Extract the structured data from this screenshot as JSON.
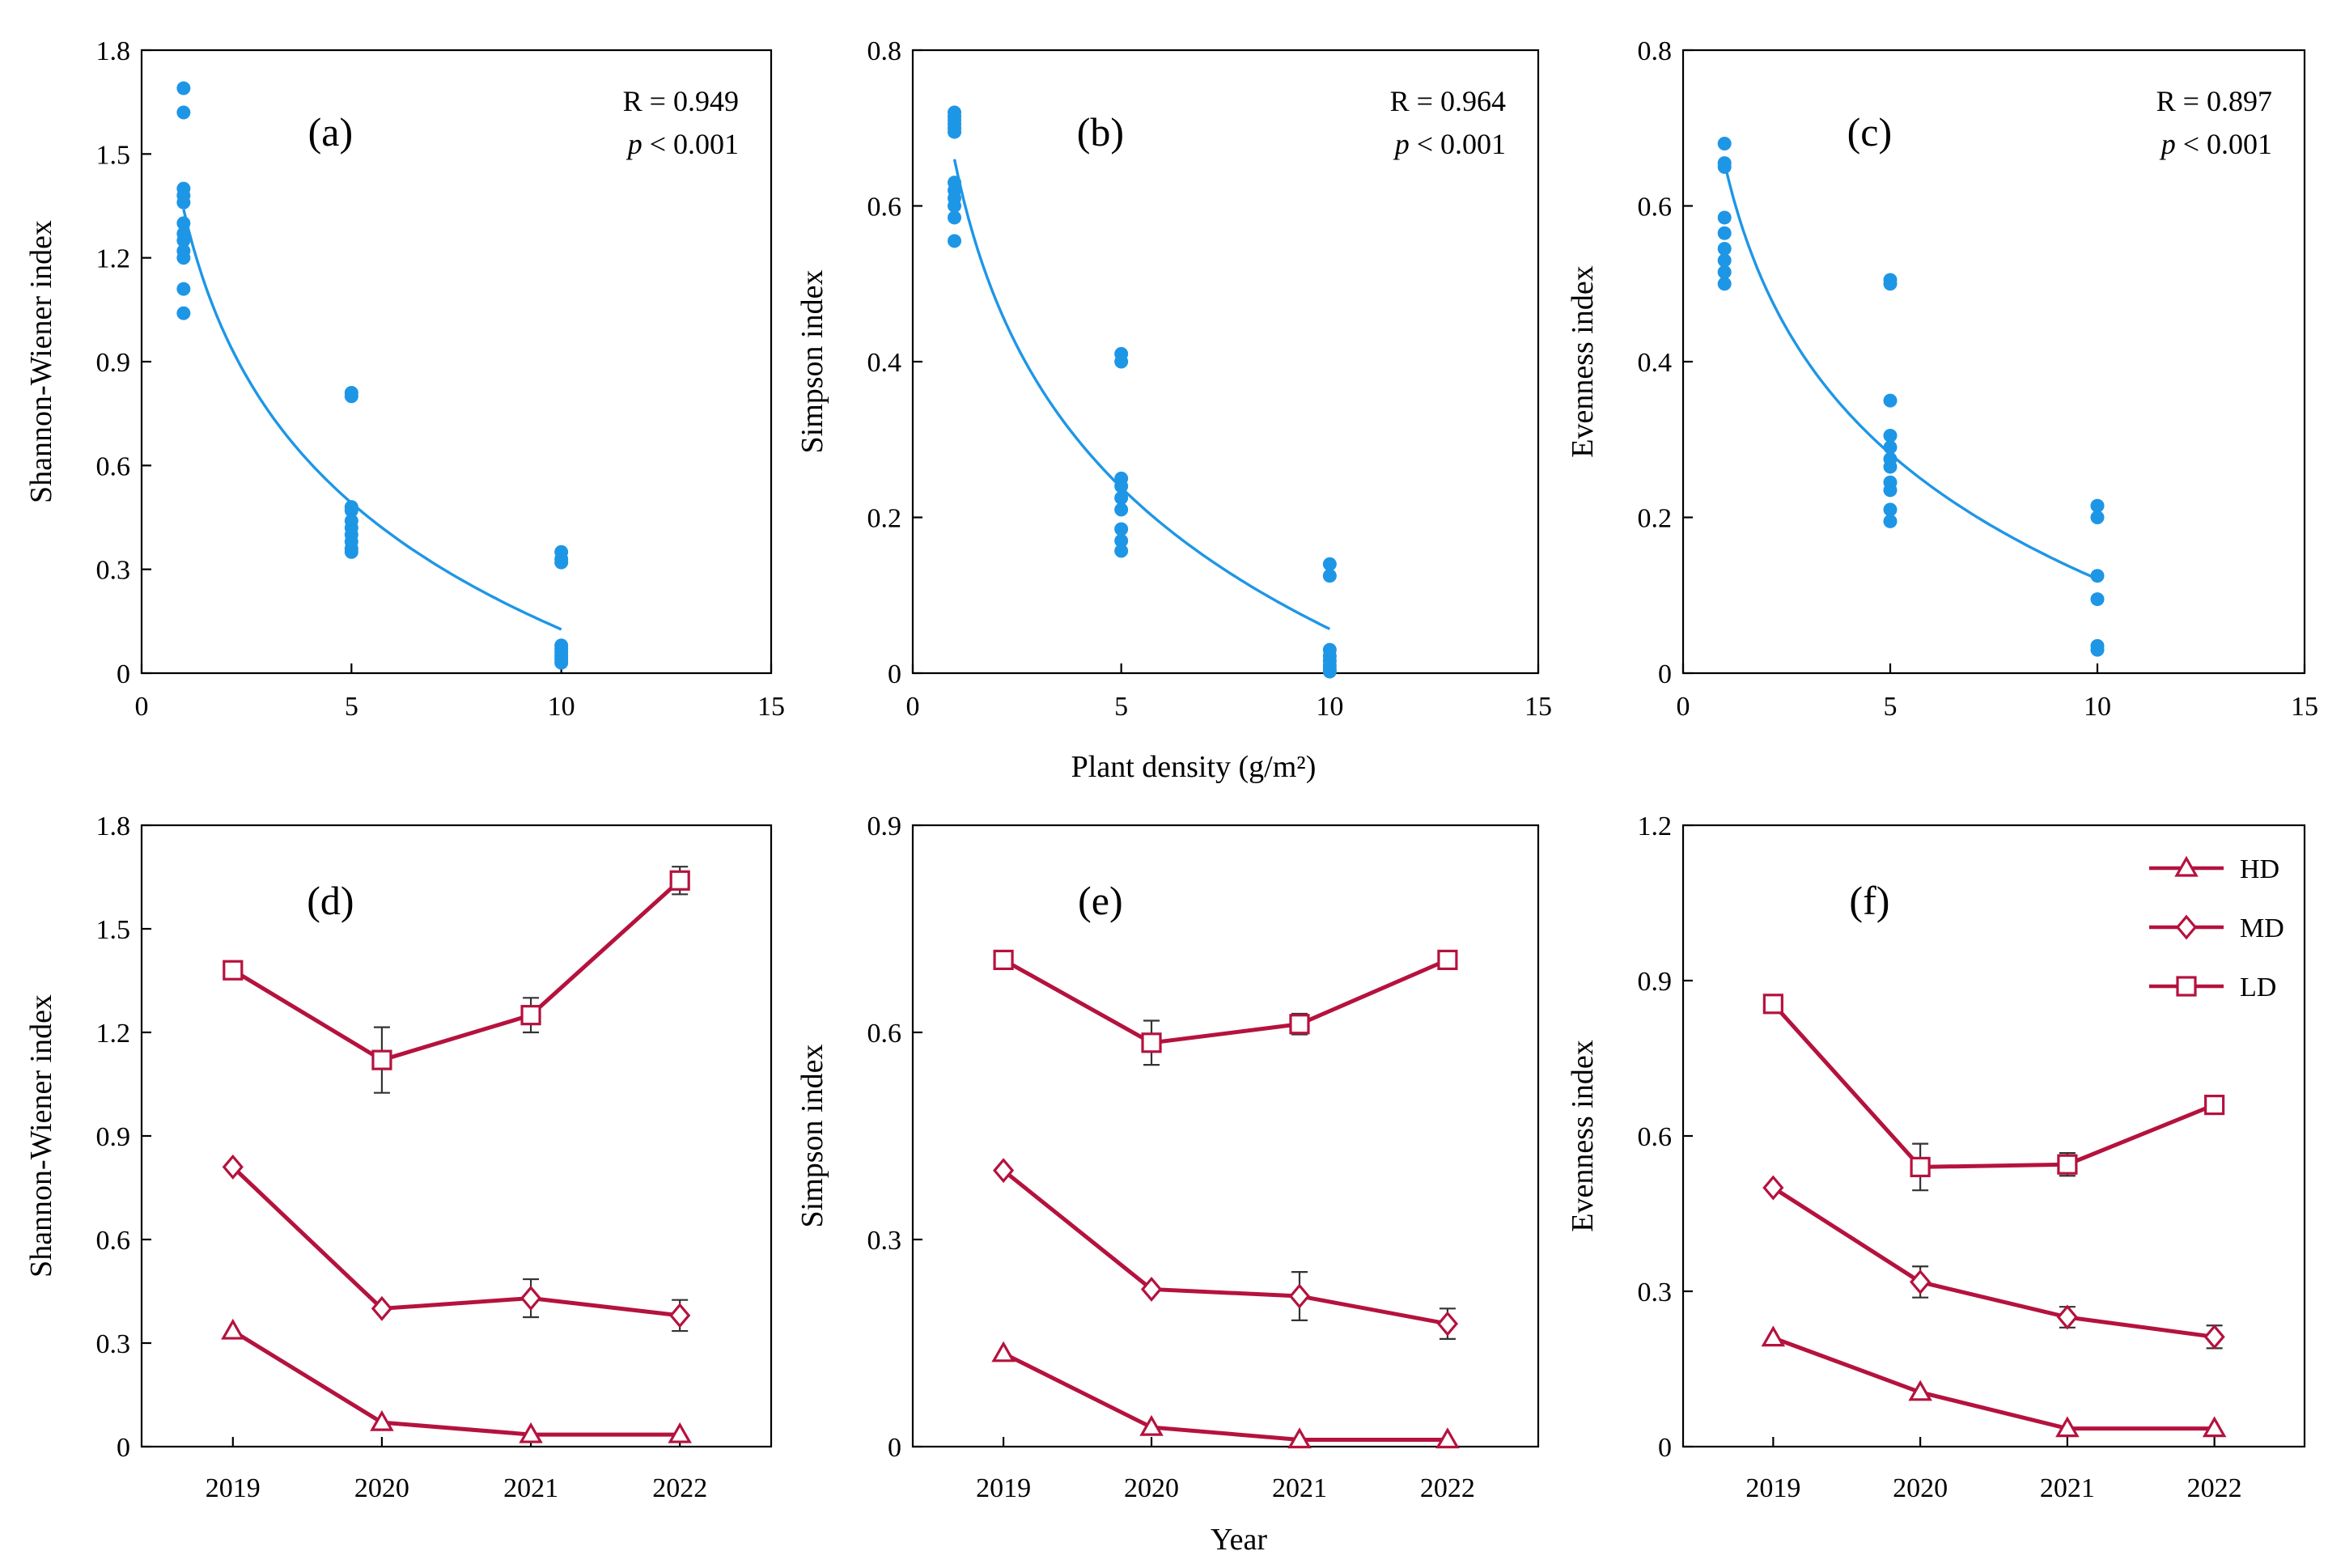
{
  "figure": {
    "shared_x_label_top": "Plant density  (g/m²)",
    "shared_x_label_bottom": "Year"
  },
  "colors": {
    "scatter": "#1e96e6",
    "line": "#b5123e"
  },
  "chart_data": [
    {
      "id": "a",
      "type": "scatter",
      "panel_label": "(a)",
      "ylabel": "Shannon-Wiener index",
      "xlabel": "Plant density (g/m²)",
      "xlim": [
        0,
        15
      ],
      "ylim": [
        0,
        1.8
      ],
      "xticks": [
        0,
        5,
        10,
        15
      ],
      "yticks": [
        0,
        0.3,
        0.6,
        0.9,
        1.2,
        1.5,
        1.8
      ],
      "ytick_labels": [
        "0",
        "0.3",
        "0.6",
        "0.9",
        "1.2",
        "1.5",
        "1.8"
      ],
      "stat_r": "R = 0.949",
      "stat_p_symbol": "p",
      "stat_p_rest": " < 0.001",
      "points": [
        [
          1,
          1.69
        ],
        [
          1,
          1.62
        ],
        [
          1,
          1.4
        ],
        [
          1,
          1.38
        ],
        [
          1,
          1.36
        ],
        [
          1,
          1.3
        ],
        [
          1,
          1.27
        ],
        [
          1,
          1.25
        ],
        [
          1,
          1.22
        ],
        [
          1,
          1.2
        ],
        [
          1,
          1.11
        ],
        [
          1,
          1.04
        ],
        [
          5,
          0.81
        ],
        [
          5,
          0.8
        ],
        [
          5,
          0.48
        ],
        [
          5,
          0.47
        ],
        [
          5,
          0.44
        ],
        [
          5,
          0.42
        ],
        [
          5,
          0.4
        ],
        [
          5,
          0.38
        ],
        [
          5,
          0.36
        ],
        [
          5,
          0.35
        ],
        [
          10,
          0.35
        ],
        [
          10,
          0.33
        ],
        [
          10,
          0.32
        ],
        [
          10,
          0.08
        ],
        [
          10,
          0.07
        ],
        [
          10,
          0.06
        ],
        [
          10,
          0.05
        ],
        [
          10,
          0.04
        ],
        [
          10,
          0.03
        ]
      ],
      "fit": {
        "model": "logarithmic",
        "a": 1.34,
        "b": -0.527,
        "x_range": [
          1,
          10
        ]
      }
    },
    {
      "id": "b",
      "type": "scatter",
      "panel_label": "(b)",
      "ylabel": "Simpson index",
      "xlabel": "Plant density (g/m²)",
      "xlim": [
        0,
        15
      ],
      "ylim": [
        0,
        0.8
      ],
      "xticks": [
        0,
        5,
        10,
        15
      ],
      "yticks": [
        0,
        0.2,
        0.4,
        0.6,
        0.8
      ],
      "ytick_labels": [
        "0",
        "0.2",
        "0.4",
        "0.6",
        "0.8"
      ],
      "stat_r": "R = 0.964",
      "stat_p_symbol": "p",
      "stat_p_rest": " < 0.001",
      "points": [
        [
          1,
          0.72
        ],
        [
          1,
          0.715
        ],
        [
          1,
          0.71
        ],
        [
          1,
          0.705
        ],
        [
          1,
          0.7
        ],
        [
          1,
          0.695
        ],
        [
          1,
          0.63
        ],
        [
          1,
          0.62
        ],
        [
          1,
          0.61
        ],
        [
          1,
          0.6
        ],
        [
          1,
          0.585
        ],
        [
          1,
          0.555
        ],
        [
          5,
          0.41
        ],
        [
          5,
          0.4
        ],
        [
          5,
          0.25
        ],
        [
          5,
          0.24
        ],
        [
          5,
          0.225
        ],
        [
          5,
          0.21
        ],
        [
          5,
          0.185
        ],
        [
          5,
          0.17
        ],
        [
          5,
          0.157
        ],
        [
          10,
          0.14
        ],
        [
          10,
          0.125
        ],
        [
          10,
          0.03
        ],
        [
          10,
          0.022
        ],
        [
          10,
          0.016
        ],
        [
          10,
          0.01
        ],
        [
          10,
          0.005
        ],
        [
          10,
          0.002
        ]
      ],
      "fit": {
        "model": "logarithmic",
        "a": 0.66,
        "b": -0.262,
        "x_range": [
          1,
          10
        ]
      }
    },
    {
      "id": "c",
      "type": "scatter",
      "panel_label": "(c)",
      "ylabel": "Evenness index",
      "xlabel": "Plant density (g/m²)",
      "xlim": [
        0,
        15
      ],
      "ylim": [
        0,
        0.8
      ],
      "xticks": [
        0,
        5,
        10,
        15
      ],
      "yticks": [
        0,
        0.2,
        0.4,
        0.6,
        0.8
      ],
      "ytick_labels": [
        "0",
        "0.2",
        "0.4",
        "0.6",
        "0.8"
      ],
      "stat_r": "R = 0.897",
      "stat_p_symbol": "p",
      "stat_p_rest": " < 0.001",
      "points": [
        [
          1,
          0.68
        ],
        [
          1,
          0.655
        ],
        [
          1,
          0.65
        ],
        [
          1,
          0.585
        ],
        [
          1,
          0.565
        ],
        [
          1,
          0.545
        ],
        [
          1,
          0.53
        ],
        [
          1,
          0.515
        ],
        [
          1,
          0.5
        ],
        [
          5,
          0.505
        ],
        [
          5,
          0.5
        ],
        [
          5,
          0.35
        ],
        [
          5,
          0.305
        ],
        [
          5,
          0.29
        ],
        [
          5,
          0.275
        ],
        [
          5,
          0.265
        ],
        [
          5,
          0.245
        ],
        [
          5,
          0.235
        ],
        [
          5,
          0.21
        ],
        [
          5,
          0.195
        ],
        [
          10,
          0.215
        ],
        [
          10,
          0.2
        ],
        [
          10,
          0.125
        ],
        [
          10,
          0.095
        ],
        [
          10,
          0.035
        ],
        [
          10,
          0.03
        ]
      ],
      "fit": {
        "model": "logarithmic",
        "a": 0.655,
        "b": -0.232,
        "x_range": [
          1,
          10
        ]
      }
    },
    {
      "id": "d",
      "type": "line",
      "panel_label": "(d)",
      "ylabel": "Shannon-Wiener index",
      "xlabel": "Year",
      "categories": [
        "2019",
        "2020",
        "2021",
        "2022"
      ],
      "ylim": [
        0,
        1.8
      ],
      "yticks": [
        0,
        0.3,
        0.6,
        0.9,
        1.2,
        1.5,
        1.8
      ],
      "ytick_labels": [
        "0",
        "0.3",
        "0.6",
        "0.9",
        "1.2",
        "1.5",
        "1.8"
      ],
      "series": [
        {
          "name": "LD",
          "marker": "square",
          "values": [
            1.38,
            1.12,
            1.25,
            1.64
          ],
          "errors": [
            0.015,
            0.095,
            0.05,
            0.04
          ]
        },
        {
          "name": "MD",
          "marker": "diamond",
          "values": [
            0.81,
            0.4,
            0.43,
            0.38
          ],
          "errors": [
            0.01,
            0.025,
            0.055,
            0.045
          ]
        },
        {
          "name": "HD",
          "marker": "triangle",
          "values": [
            0.335,
            0.07,
            0.035,
            0.035
          ],
          "errors": [
            0.02,
            0.012,
            0.006,
            0.006
          ]
        }
      ]
    },
    {
      "id": "e",
      "type": "line",
      "panel_label": "(e)",
      "ylabel": "Simpson index",
      "xlabel": "Year",
      "categories": [
        "2019",
        "2020",
        "2021",
        "2022"
      ],
      "ylim": [
        0,
        0.9
      ],
      "yticks": [
        0,
        0.3,
        0.6,
        0.9
      ],
      "ytick_labels": [
        "0",
        "0.3",
        "0.6",
        "0.9"
      ],
      "series": [
        {
          "name": "LD",
          "marker": "square",
          "values": [
            0.705,
            0.585,
            0.612,
            0.705
          ],
          "errors": [
            0.006,
            0.032,
            0.015,
            0.014
          ]
        },
        {
          "name": "MD",
          "marker": "diamond",
          "values": [
            0.4,
            0.228,
            0.218,
            0.178
          ],
          "errors": [
            0.005,
            0.014,
            0.035,
            0.022
          ]
        },
        {
          "name": "HD",
          "marker": "triangle",
          "values": [
            0.135,
            0.028,
            0.01,
            0.01
          ],
          "errors": [
            0.01,
            0.008,
            0.004,
            0.004
          ]
        }
      ]
    },
    {
      "id": "f",
      "type": "line",
      "panel_label": "(f)",
      "ylabel": "Evenness index",
      "xlabel": "Year",
      "categories": [
        "2019",
        "2020",
        "2021",
        "2022"
      ],
      "ylim": [
        0,
        1.2
      ],
      "yticks": [
        0,
        0.3,
        0.6,
        0.9,
        1.2
      ],
      "ytick_labels": [
        "0",
        "0.3",
        "0.6",
        "0.9",
        "1.2"
      ],
      "legend": true,
      "legend_position": "top-right",
      "legend_order": [
        "HD",
        "MD",
        "LD"
      ],
      "series": [
        {
          "name": "LD",
          "marker": "square",
          "values": [
            0.855,
            0.54,
            0.545,
            0.66
          ],
          "errors": [
            0.006,
            0.045,
            0.022,
            0.015
          ]
        },
        {
          "name": "MD",
          "marker": "diamond",
          "values": [
            0.5,
            0.318,
            0.25,
            0.212
          ],
          "errors": [
            0.005,
            0.03,
            0.02,
            0.022
          ]
        },
        {
          "name": "HD",
          "marker": "triangle",
          "values": [
            0.21,
            0.105,
            0.035,
            0.035
          ],
          "errors": [
            0.01,
            0.012,
            0.005,
            0.005
          ]
        }
      ]
    }
  ]
}
